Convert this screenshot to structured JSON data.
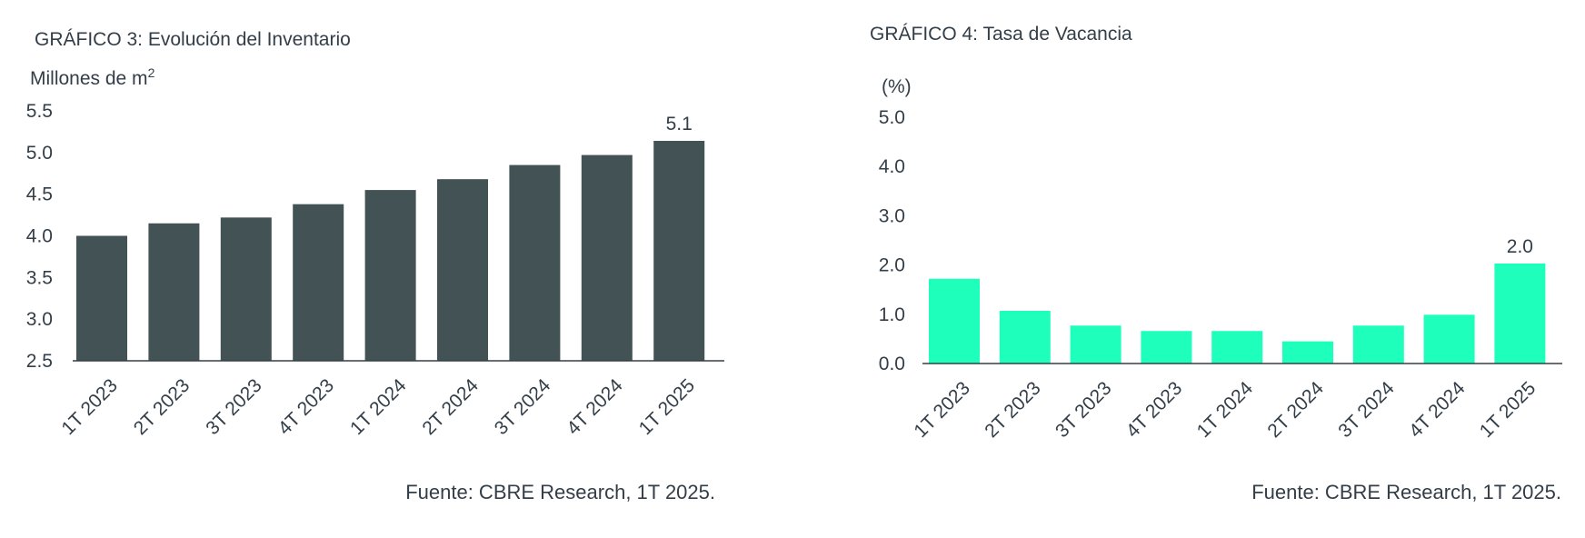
{
  "chart_data": [
    {
      "type": "bar",
      "title": "GRÁFICO 3: Evolución del Inventario",
      "ylabel_main": "Millones de m",
      "ylabel_sup": "2",
      "categories": [
        "1T 2023",
        "2T 2023",
        "3T 2023",
        "4T 2023",
        "1T 2024",
        "2T 2024",
        "3T 2024",
        "4T 2024",
        "1T 2025"
      ],
      "values": [
        4.0,
        4.15,
        4.22,
        4.38,
        4.55,
        4.68,
        4.85,
        4.97,
        5.14
      ],
      "ylim": [
        2.5,
        5.5
      ],
      "yticks": [
        "2.5",
        "3.0",
        "3.5",
        "4.0",
        "4.5",
        "5.0",
        "5.5"
      ],
      "labeled_point": {
        "index": 8,
        "text": "5.1"
      },
      "bar_color": "#435254",
      "source": "Fuente: CBRE Research, 1T 2025.",
      "grid": false
    },
    {
      "type": "bar",
      "title": "GRÁFICO 4: Tasa de Vacancia",
      "ylabel": "(%)",
      "categories": [
        "1T 2023",
        "2T 2023",
        "3T 2023",
        "4T 2023",
        "1T 2024",
        "2T 2024",
        "3T 2024",
        "4T 2024",
        "1T 2025"
      ],
      "values": [
        1.72,
        1.07,
        0.77,
        0.66,
        0.66,
        0.45,
        0.77,
        0.99,
        2.03
      ],
      "ylim": [
        0.0,
        5.0
      ],
      "yticks": [
        "0.0",
        "1.0",
        "2.0",
        "3.0",
        "4.0",
        "5.0"
      ],
      "labeled_point": {
        "index": 8,
        "text": "2.0"
      },
      "bar_color": "#1effbc",
      "source": "Fuente: CBRE Research, 1T 2025.",
      "grid": false
    }
  ]
}
